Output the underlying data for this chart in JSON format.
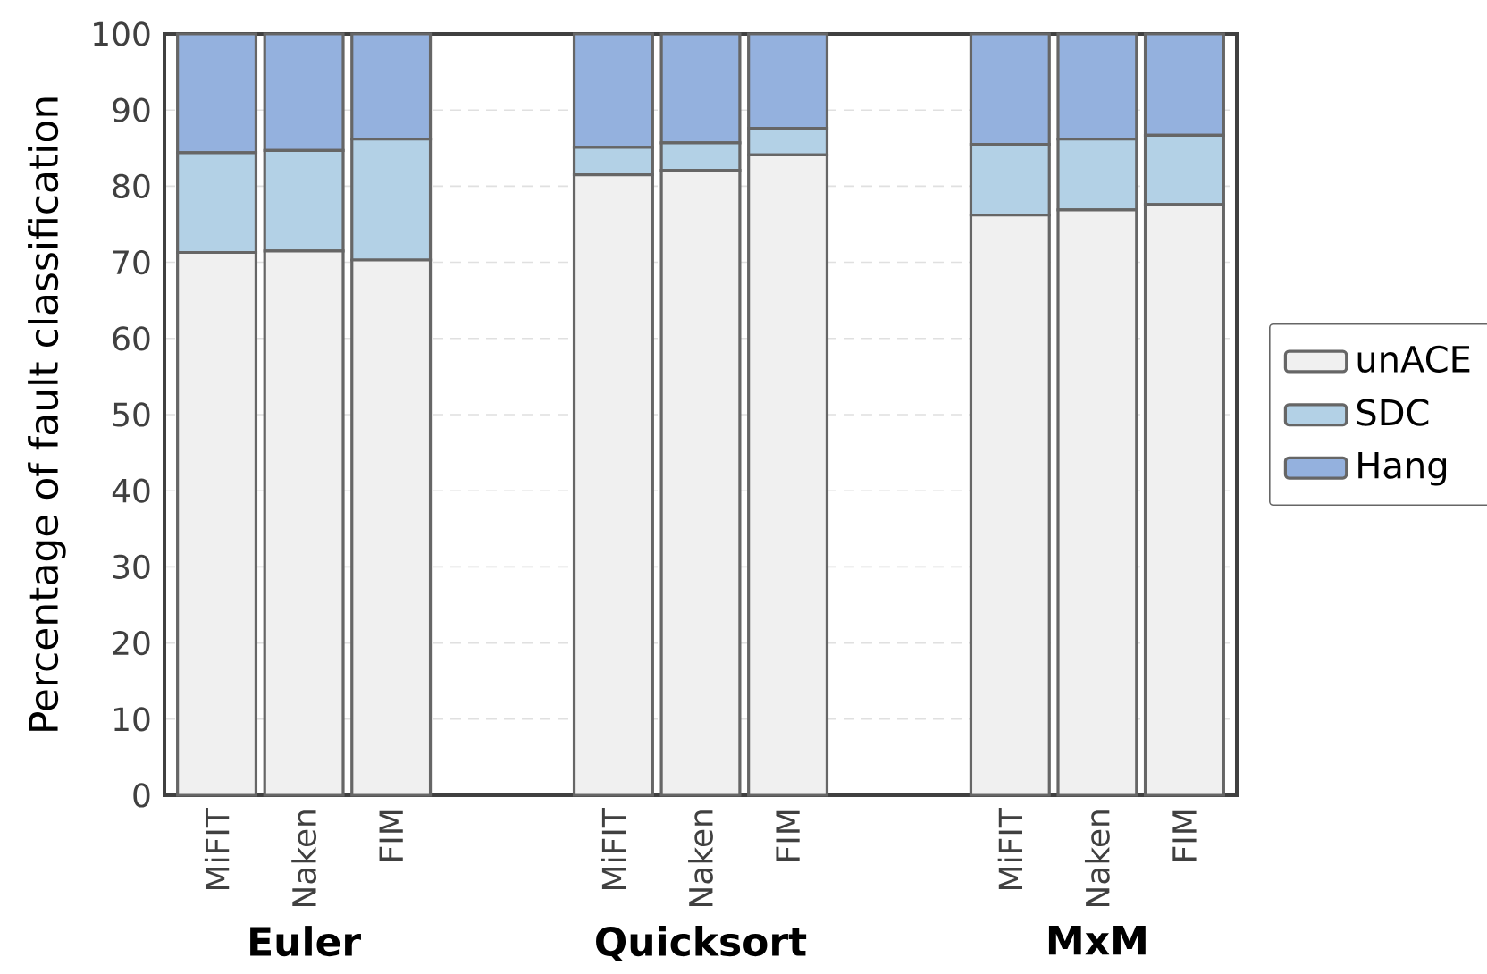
{
  "chart_data": {
    "type": "bar",
    "stacked": true,
    "ylabel": "Percentage of fault classification",
    "categories": [
      "MiFIT",
      "Naken",
      "FIM",
      "MiFIT",
      "Naken",
      "FIM",
      "MiFIT",
      "Naken",
      "FIM"
    ],
    "annotations": [
      "Euler",
      "Quicksort",
      "MxM"
    ],
    "series": [
      {
        "name": "unACE",
        "color": "#f0f0f0",
        "values": [
          71.3,
          71.5,
          70.3,
          81.5,
          82.1,
          84.1,
          76.2,
          76.9,
          77.6
        ]
      },
      {
        "name": "SDC",
        "color": "#b3d1e6",
        "values": [
          13.1,
          13.2,
          15.9,
          3.6,
          3.6,
          3.5,
          9.3,
          9.3,
          9.1
        ]
      },
      {
        "name": "Hang",
        "color": "#94b1de",
        "values": [
          15.6,
          15.3,
          13.8,
          14.9,
          14.3,
          12.4,
          14.5,
          13.8,
          13.3
        ]
      }
    ],
    "ylim": [
      0,
      100
    ],
    "yticks": [
      0,
      10,
      20,
      30,
      40,
      50,
      60,
      70,
      80,
      90,
      100
    ],
    "grid": "y",
    "legend": "right"
  }
}
